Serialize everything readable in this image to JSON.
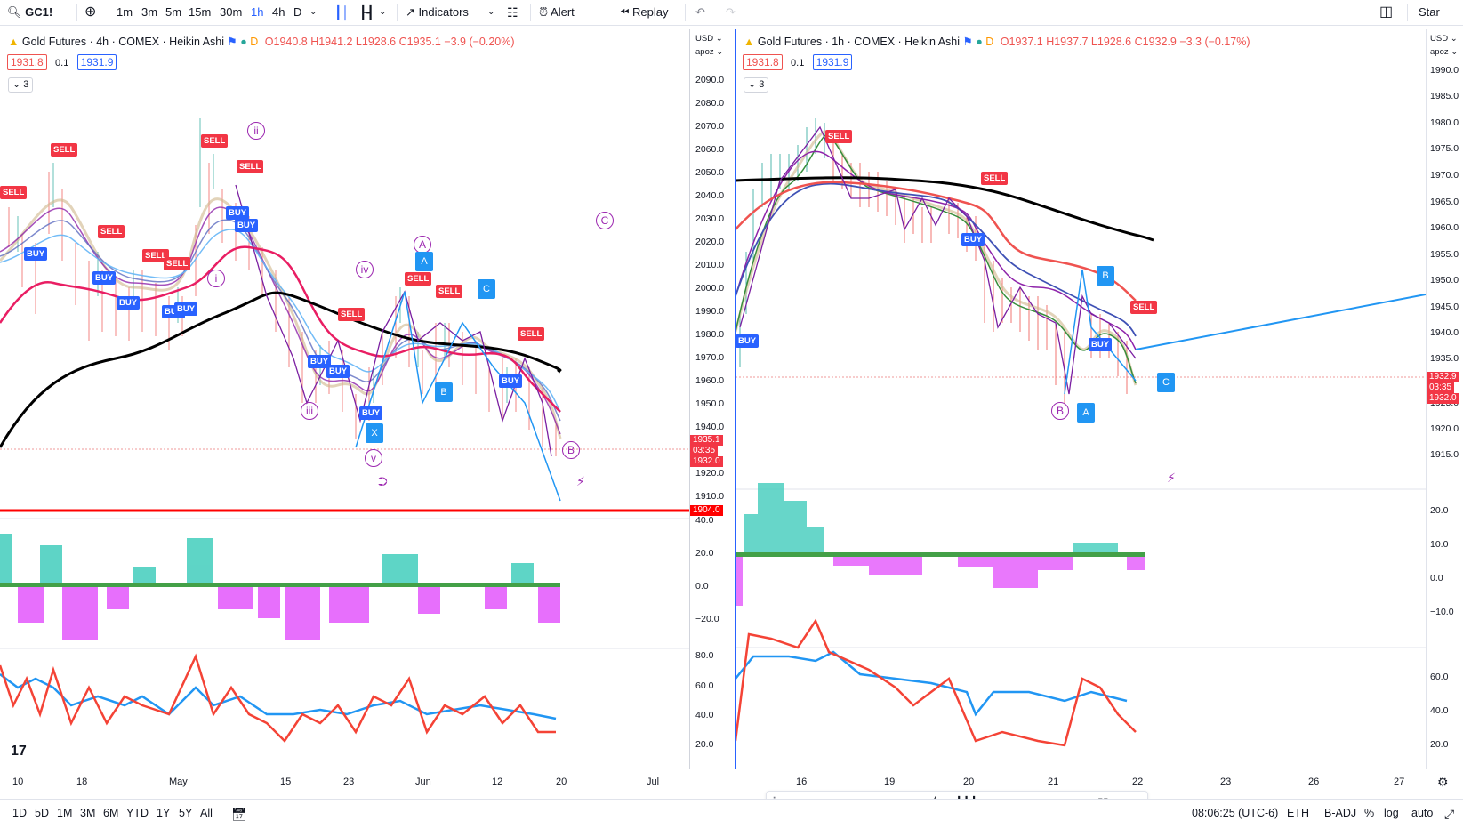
{
  "toolbar": {
    "symbol": "GC1!",
    "timeframes": [
      "1m",
      "3m",
      "5m",
      "15m",
      "30m",
      "1h",
      "4h",
      "D"
    ],
    "active_timeframe": "1h",
    "indicators_label": "Indicators",
    "alert_label": "Alert",
    "replay_label": "Replay",
    "right_label": "Star"
  },
  "left_pane": {
    "title": "Gold Futures · 4h · COMEX · Heikin Ashi",
    "d_badge": "D",
    "ohlc": "O1940.8 H1941.2 L1928.6 C1935.1 −3.9 (−0.20%)",
    "bid": "1931.8",
    "spread": "0.1",
    "ask": "1931.9",
    "collapse": "3",
    "currency": "USD",
    "currency2": "apoz",
    "price_ticks": [
      "2090.0",
      "2080.0",
      "2070.0",
      "2060.0",
      "2050.0",
      "2040.0",
      "2030.0",
      "2020.0",
      "2010.0",
      "2000.0",
      "1990.0",
      "1980.0",
      "1970.0",
      "1960.0",
      "1950.0",
      "1940.0",
      "1920.0",
      "1910.0"
    ],
    "last_price": "1935.1",
    "countdown": "03:35",
    "bid_tag": "1932.0",
    "hline_tag": "1904.0",
    "osc_ticks": [
      "40.0",
      "20.0",
      "0.0",
      "−20.0"
    ],
    "rsi_ticks": [
      "80.0",
      "60.0",
      "40.0",
      "20.0"
    ],
    "x_labels": [
      "10",
      "18",
      "May",
      "15",
      "23",
      "Jun",
      "12",
      "20",
      "Jul"
    ],
    "sell_labels": [
      "SELL",
      "SELL",
      "SELL",
      "SELL",
      "SELL",
      "SELL",
      "SELL",
      "SELL",
      "SELL",
      "SELL",
      "SELL"
    ],
    "buy_labels": [
      "BUY",
      "BUY",
      "BUY",
      "BUY",
      "BUY",
      "BUY",
      "BUY",
      "BUY",
      "BUY",
      "BUY",
      "BUY"
    ],
    "waves": [
      "ii",
      "i",
      "iv",
      "iii",
      "v",
      "A",
      "C",
      "B"
    ],
    "points": [
      "A",
      "B",
      "C",
      "X"
    ]
  },
  "right_pane": {
    "title": "Gold Futures · 1h · COMEX · Heikin Ashi",
    "d_badge": "D",
    "ohlc": "O1937.1 H1937.7 L1928.6 C1932.9 −3.3 (−0.17%)",
    "bid": "1931.8",
    "spread": "0.1",
    "ask": "1931.9",
    "collapse": "3",
    "currency": "USD",
    "currency2": "apoz",
    "price_ticks": [
      "1990.0",
      "1985.0",
      "1980.0",
      "1975.0",
      "1970.0",
      "1965.0",
      "1960.0",
      "1955.0",
      "1950.0",
      "1945.0",
      "1940.0",
      "1935.0",
      "1930.0",
      "1925.0",
      "1920.0",
      "1915.0"
    ],
    "last_price": "1932.9",
    "countdown": "03:35",
    "bid_tag": "1932.0",
    "osc_ticks": [
      "20.0",
      "10.0",
      "0.0",
      "−10.0"
    ],
    "rsi_ticks": [
      "60.0",
      "40.0",
      "20.0"
    ],
    "x_labels": [
      "16",
      "19",
      "20",
      "21",
      "22",
      "23",
      "26",
      "27"
    ],
    "sell_labels": [
      "SELL",
      "SELL",
      "SELL"
    ],
    "buy_labels": [
      "BUY",
      "BUY",
      "BUY"
    ],
    "waves": [
      "B"
    ],
    "points": [
      "B",
      "A",
      "C"
    ]
  },
  "bottombar": {
    "ranges": [
      "1D",
      "5D",
      "1M",
      "3M",
      "6M",
      "YTD",
      "1Y",
      "5Y",
      "All"
    ],
    "time": "08:06:25 (UTC-6)",
    "session": "ETH",
    "adjust": "B-ADJ",
    "percent": "%",
    "log": "log",
    "auto": "auto"
  },
  "colors": {
    "sell": "#f23645",
    "buy": "#2962ff",
    "wave": "#9c27b0",
    "point": "#2196f3",
    "support_line": "#ff0000"
  }
}
